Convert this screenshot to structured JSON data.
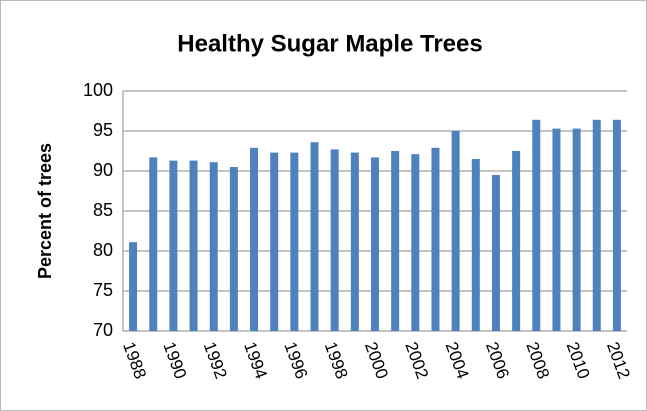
{
  "chart_data": {
    "type": "bar",
    "title": "Healthy Sugar Maple Trees",
    "ylabel": "Percent of trees",
    "categories": [
      "1988",
      null,
      "1990",
      null,
      "1992",
      null,
      "1994",
      null,
      "1996",
      null,
      "1998",
      null,
      "2000",
      null,
      "2002",
      null,
      "2004",
      null,
      "2006",
      null,
      "2008",
      null,
      "2010",
      null,
      "2012"
    ],
    "values": [
      81.1,
      91.7,
      91.3,
      91.3,
      91.1,
      90.5,
      92.9,
      92.3,
      92.3,
      93.6,
      92.7,
      92.3,
      91.7,
      92.5,
      92.1,
      92.9,
      95,
      91.5,
      89.5,
      92.5,
      96.4,
      95.3,
      95.3,
      96.4,
      96.4
    ],
    "color": "#4f81bd",
    "ylim": [
      70,
      100
    ],
    "yticks": [
      70,
      75,
      80,
      85,
      90,
      95,
      100
    ],
    "grid": true
  }
}
